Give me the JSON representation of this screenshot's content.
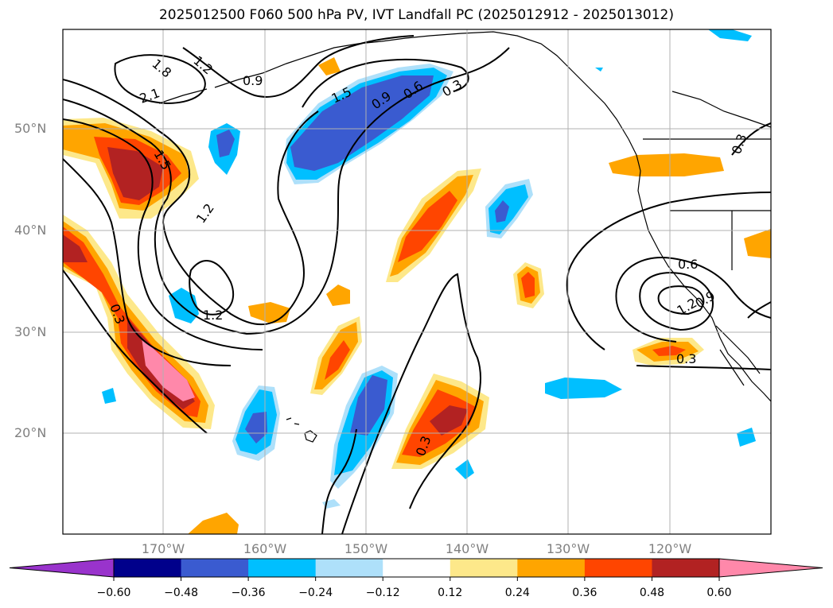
{
  "title": "2025012500 F060 500 hPa PV, IVT Landfall PC (2025012912 - 2025013012)",
  "lat_ticks": [
    "50°N",
    "40°N",
    "30°N",
    "20°N"
  ],
  "lon_ticks": [
    "170°W",
    "160°W",
    "150°W",
    "140°W",
    "130°W",
    "120°W"
  ],
  "contour_labels": [
    "1.8",
    "1.2",
    "0.9",
    "2.1",
    "1.5",
    "1.5",
    "0.9",
    "0.6",
    "0.3",
    "1.2",
    "1.2",
    "0.3",
    "0.3",
    "0.6",
    "1.2",
    "0.9",
    "0.3",
    "0.3"
  ],
  "colorbar": {
    "labels": [
      "−0.60",
      "−0.48",
      "−0.36",
      "−0.24",
      "−0.12",
      "0.12",
      "0.24",
      "0.36",
      "0.48",
      "0.60"
    ],
    "colors": [
      "#9933cc",
      "#00008b",
      "#3a5bd0",
      "#00bfff",
      "#aee0fa",
      "#ffffff",
      "#fde88a",
      "#ffa500",
      "#ff4500",
      "#b22222",
      "#ff88aa"
    ]
  },
  "fill_colors": {
    "neg_light": "#aee0fa",
    "neg1": "#00bfff",
    "neg2": "#3a5bd0",
    "pos_light": "#fde88a",
    "pos1": "#ffa500",
    "pos2": "#ff4500",
    "pos3": "#b22222",
    "pos4": "#ff88aa"
  }
}
